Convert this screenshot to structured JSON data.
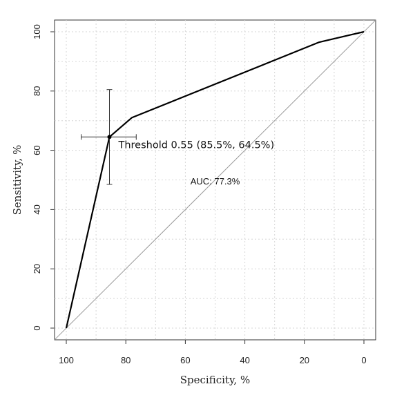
{
  "chart_data": {
    "type": "line",
    "title": "",
    "xlabel": "Specificity, %",
    "ylabel": "Sensitivity, %",
    "xlim": [
      100,
      0
    ],
    "ylim": [
      0,
      100
    ],
    "x_reversed": true,
    "x_ticks": [
      100,
      80,
      60,
      40,
      20,
      0
    ],
    "y_ticks": [
      0,
      20,
      40,
      60,
      80,
      100
    ],
    "grid": "dotted",
    "series": [
      {
        "type": "line",
        "x": [
          100,
          85.5,
          78,
          15,
          0
        ],
        "y": [
          0,
          64.5,
          71,
          96.5,
          100
        ]
      }
    ],
    "reference_line": {
      "x": [
        100,
        0
      ],
      "y": [
        0,
        100
      ],
      "color": "#999999"
    },
    "threshold_point": {
      "specificity": 85.5,
      "sensitivity": 64.5,
      "ci_specificity": [
        95,
        76.5
      ],
      "ci_sensitivity": [
        48.5,
        80.5
      ],
      "label": "Threshold 0.55 (85.5%, 64.5%)"
    },
    "annotations": [
      {
        "text": "AUC: 77.3%",
        "x": 50,
        "y": 48.5
      }
    ]
  }
}
